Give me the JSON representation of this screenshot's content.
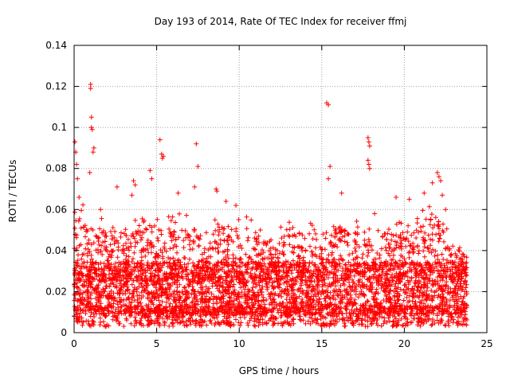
{
  "chart_data": {
    "type": "scatter",
    "title": "Day 193 of 2014, Rate Of TEC Index for receiver ffmj",
    "xlabel": "GPS time / hours",
    "ylabel": "ROTI / TECUs",
    "xlim": [
      0,
      25
    ],
    "ylim": [
      0,
      0.14
    ],
    "x_ticks": [
      0,
      5,
      10,
      15,
      20,
      25
    ],
    "x_tick_labels": [
      "0",
      "5",
      "10",
      "15",
      "20",
      "25"
    ],
    "y_ticks": [
      0,
      0.02,
      0.04,
      0.06,
      0.08,
      0.1,
      0.12,
      0.14
    ],
    "y_tick_labels": [
      "0",
      "0.02",
      "0.04",
      "0.06",
      "0.08",
      "0.1",
      "0.12",
      "0.14"
    ],
    "grid": true,
    "marker": "plus",
    "series": [
      {
        "name": "ROTI",
        "color": "#ff0000",
        "data_range_hours": [
          0,
          23.8
        ],
        "typical_value_range": [
          0.005,
          0.035
        ],
        "envelope": {
          "x": [
            0,
            1,
            2,
            3,
            4,
            5,
            6,
            7,
            8,
            9,
            10,
            11,
            12,
            13,
            14,
            15,
            16,
            17,
            18,
            19,
            20,
            21,
            22,
            23,
            23.8
          ],
          "upper": [
            0.065,
            0.06,
            0.055,
            0.05,
            0.058,
            0.06,
            0.057,
            0.06,
            0.052,
            0.06,
            0.058,
            0.055,
            0.045,
            0.058,
            0.055,
            0.05,
            0.06,
            0.055,
            0.05,
            0.055,
            0.055,
            0.06,
            0.065,
            0.045,
            0.04
          ]
        },
        "peaks": [
          {
            "x": 0.05,
            "y": 0.093
          },
          {
            "x": 0.1,
            "y": 0.088
          },
          {
            "x": 0.15,
            "y": 0.082
          },
          {
            "x": 0.2,
            "y": 0.075
          },
          {
            "x": 0.3,
            "y": 0.066
          },
          {
            "x": 1.0,
            "y": 0.121
          },
          {
            "x": 1.0,
            "y": 0.119
          },
          {
            "x": 1.05,
            "y": 0.105
          },
          {
            "x": 1.05,
            "y": 0.1
          },
          {
            "x": 1.1,
            "y": 0.099
          },
          {
            "x": 1.2,
            "y": 0.09
          },
          {
            "x": 1.15,
            "y": 0.088
          },
          {
            "x": 0.95,
            "y": 0.078
          },
          {
            "x": 1.6,
            "y": 0.06
          },
          {
            "x": 2.6,
            "y": 0.071
          },
          {
            "x": 3.5,
            "y": 0.067
          },
          {
            "x": 3.6,
            "y": 0.074
          },
          {
            "x": 3.7,
            "y": 0.072
          },
          {
            "x": 4.6,
            "y": 0.079
          },
          {
            "x": 4.7,
            "y": 0.075
          },
          {
            "x": 5.2,
            "y": 0.094
          },
          {
            "x": 5.3,
            "y": 0.087
          },
          {
            "x": 5.35,
            "y": 0.085
          },
          {
            "x": 5.4,
            "y": 0.086
          },
          {
            "x": 6.3,
            "y": 0.068
          },
          {
            "x": 7.4,
            "y": 0.092
          },
          {
            "x": 7.5,
            "y": 0.081
          },
          {
            "x": 7.3,
            "y": 0.071
          },
          {
            "x": 8.6,
            "y": 0.07
          },
          {
            "x": 8.65,
            "y": 0.069
          },
          {
            "x": 9.2,
            "y": 0.064
          },
          {
            "x": 9.8,
            "y": 0.062
          },
          {
            "x": 15.3,
            "y": 0.112
          },
          {
            "x": 15.4,
            "y": 0.111
          },
          {
            "x": 15.5,
            "y": 0.081
          },
          {
            "x": 15.4,
            "y": 0.075
          },
          {
            "x": 16.2,
            "y": 0.068
          },
          {
            "x": 17.8,
            "y": 0.095
          },
          {
            "x": 17.85,
            "y": 0.093
          },
          {
            "x": 17.9,
            "y": 0.091
          },
          {
            "x": 17.8,
            "y": 0.084
          },
          {
            "x": 17.85,
            "y": 0.082
          },
          {
            "x": 17.9,
            "y": 0.08
          },
          {
            "x": 18.2,
            "y": 0.058
          },
          {
            "x": 19.5,
            "y": 0.066
          },
          {
            "x": 20.3,
            "y": 0.065
          },
          {
            "x": 21.2,
            "y": 0.068
          },
          {
            "x": 21.7,
            "y": 0.073
          },
          {
            "x": 22.0,
            "y": 0.078
          },
          {
            "x": 22.1,
            "y": 0.076
          },
          {
            "x": 22.2,
            "y": 0.074
          },
          {
            "x": 22.3,
            "y": 0.067
          },
          {
            "x": 22.5,
            "y": 0.06
          }
        ]
      }
    ]
  }
}
